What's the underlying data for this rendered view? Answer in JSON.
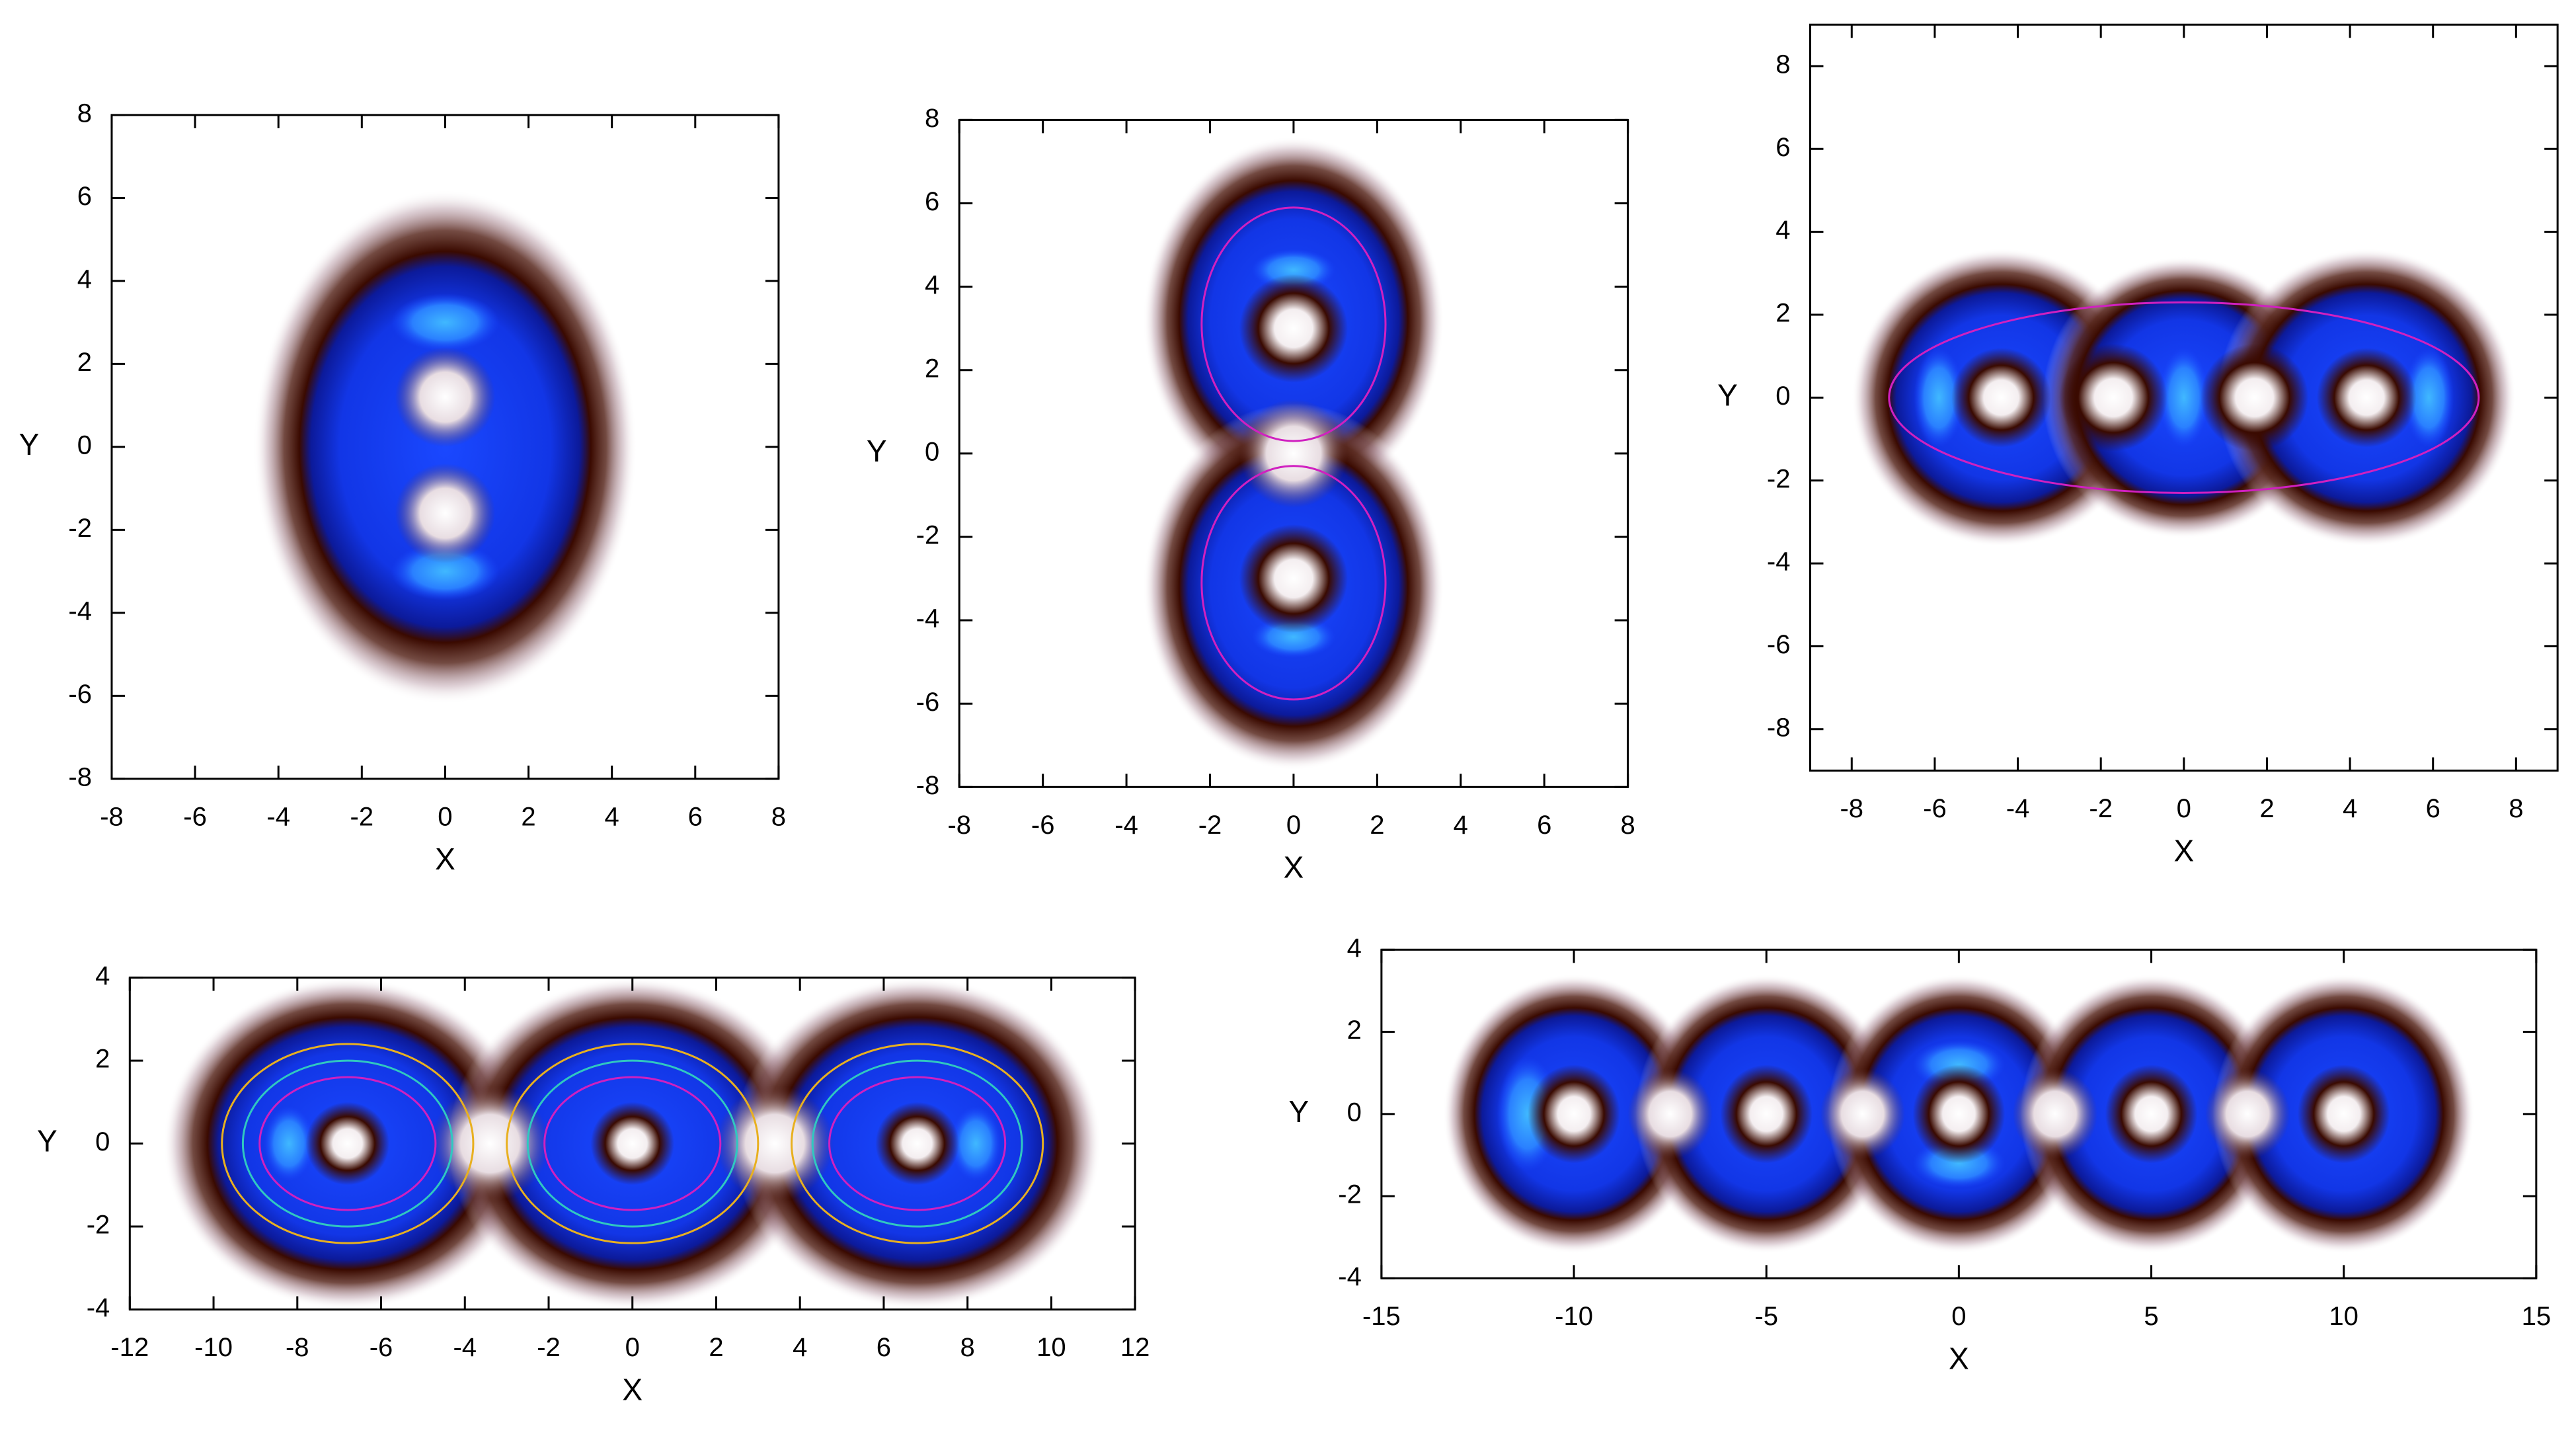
{
  "chart_data": [
    {
      "type": "heatmap",
      "xlabel": "X",
      "ylabel": "Y",
      "xlim": [
        -8,
        8
      ],
      "ylim": [
        -8,
        8
      ],
      "xticks": [
        -8,
        -6,
        -4,
        -2,
        0,
        2,
        4,
        6,
        8
      ],
      "yticks": [
        -8,
        -6,
        -4,
        -2,
        0,
        2,
        4,
        6,
        8
      ]
    },
    {
      "type": "heatmap",
      "xlabel": "X",
      "ylabel": "Y",
      "xlim": [
        -8,
        8
      ],
      "ylim": [
        -8,
        8
      ],
      "xticks": [
        -8,
        -6,
        -4,
        -2,
        0,
        2,
        4,
        6,
        8
      ],
      "yticks": [
        -8,
        -6,
        -4,
        -2,
        0,
        2,
        4,
        6,
        8
      ]
    },
    {
      "type": "heatmap",
      "xlabel": "X",
      "ylabel": "Y",
      "xlim": [
        -9,
        9
      ],
      "ylim": [
        -9,
        9
      ],
      "xticks": [
        -8,
        -6,
        -4,
        -2,
        0,
        2,
        4,
        6,
        8
      ],
      "yticks": [
        -8,
        -6,
        -4,
        -2,
        0,
        2,
        4,
        6,
        8
      ]
    },
    {
      "type": "heatmap",
      "xlabel": "X",
      "ylabel": "Y",
      "xlim": [
        -12,
        12
      ],
      "ylim": [
        -4,
        4
      ],
      "xticks": [
        -12,
        -10,
        -8,
        -6,
        -4,
        -2,
        0,
        2,
        4,
        6,
        8,
        10,
        12
      ],
      "yticks": [
        -4,
        -2,
        0,
        2,
        4
      ]
    },
    {
      "type": "heatmap",
      "xlabel": "X",
      "ylabel": "Y",
      "xlim": [
        -15,
        15
      ],
      "ylim": [
        -4,
        4
      ],
      "xticks": [
        -15,
        -10,
        -5,
        0,
        5,
        10,
        15
      ],
      "yticks": [
        -4,
        -2,
        0,
        2,
        4
      ]
    }
  ]
}
